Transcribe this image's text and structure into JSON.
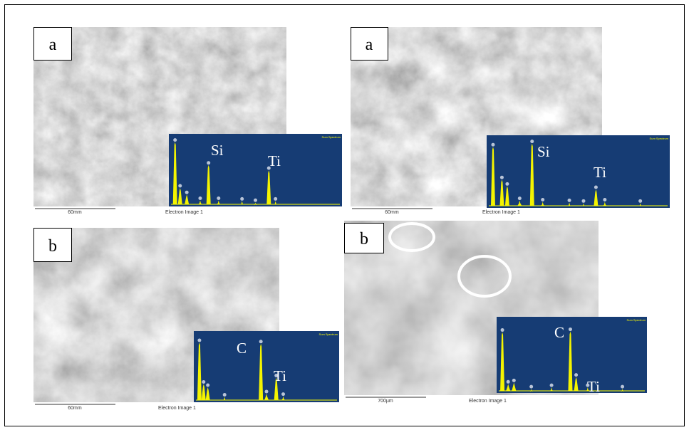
{
  "panels": [
    {
      "label": "a",
      "elements": [
        "Si",
        "Ti"
      ],
      "scale": "60mm",
      "caption": "Electron Image 1",
      "spectrum": "Sum Spectrum"
    },
    {
      "label": "a",
      "elements": [
        "Si",
        "Ti"
      ],
      "scale": "60mm",
      "caption": "Electron Image 1",
      "spectrum": "Sum Spectrum"
    },
    {
      "label": "b",
      "elements": [
        "C",
        "Ti"
      ],
      "scale": "60mm",
      "caption": "Electron Image 1",
      "spectrum": "Sum Spectrum"
    },
    {
      "label": "b",
      "elements": [
        "C",
        "Ti"
      ],
      "scale": "700µm",
      "caption": "Electron Image 1",
      "spectrum": "Sum Spectrum"
    }
  ]
}
